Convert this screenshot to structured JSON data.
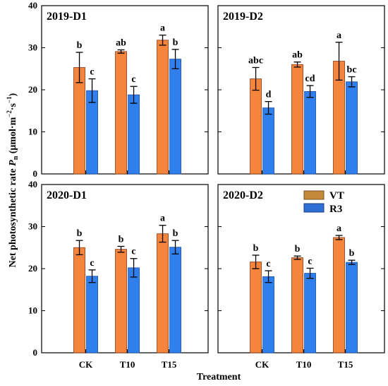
{
  "chart_data": [
    {
      "type": "bar",
      "panel_title": "2019-D1",
      "categories": [
        "CK",
        "T10",
        "T15"
      ],
      "series": [
        {
          "name": "VT",
          "values": [
            25.3,
            29.1,
            31.8
          ],
          "errors": [
            3.6,
            0.4,
            1.2
          ],
          "letters": [
            "b",
            "ab",
            "a"
          ]
        },
        {
          "name": "R3",
          "values": [
            19.8,
            18.8,
            27.3
          ],
          "errors": [
            2.8,
            2.0,
            2.3
          ],
          "letters": [
            "c",
            "c",
            "b"
          ]
        }
      ],
      "ylim": [
        0,
        40
      ],
      "yticks": [
        0,
        10,
        20,
        30,
        40
      ]
    },
    {
      "type": "bar",
      "panel_title": "2019-D2",
      "categories": [
        "CK",
        "T10",
        "T15"
      ],
      "series": [
        {
          "name": "VT",
          "values": [
            22.6,
            26.0,
            26.8
          ],
          "errors": [
            2.7,
            0.6,
            4.5
          ],
          "letters": [
            "abc",
            "ab",
            "a"
          ]
        },
        {
          "name": "R3",
          "values": [
            15.7,
            19.6,
            21.9
          ],
          "errors": [
            1.5,
            1.4,
            1.2
          ],
          "letters": [
            "d",
            "cd",
            "bc"
          ]
        }
      ],
      "ylim": [
        0,
        40
      ],
      "yticks": [
        0,
        10,
        20,
        30,
        40
      ]
    },
    {
      "type": "bar",
      "panel_title": "2020-D1",
      "categories": [
        "CK",
        "T10",
        "T15"
      ],
      "series": [
        {
          "name": "VT",
          "values": [
            25.0,
            24.6,
            28.3
          ],
          "errors": [
            1.7,
            0.7,
            2.0
          ],
          "letters": [
            "b",
            "b",
            "a"
          ]
        },
        {
          "name": "R3",
          "values": [
            18.2,
            20.2,
            25.1
          ],
          "errors": [
            1.5,
            2.2,
            1.6
          ],
          "letters": [
            "c",
            "c",
            "b"
          ]
        }
      ],
      "ylim": [
        0,
        40
      ],
      "yticks": [
        0,
        10,
        20,
        30,
        40
      ]
    },
    {
      "type": "bar",
      "panel_title": "2020-D2",
      "categories": [
        "CK",
        "T10",
        "T15"
      ],
      "series": [
        {
          "name": "VT",
          "values": [
            21.6,
            22.6,
            27.4
          ],
          "errors": [
            1.6,
            0.4,
            0.5
          ],
          "letters": [
            "b",
            "b",
            "a"
          ]
        },
        {
          "name": "R3",
          "values": [
            18.1,
            18.9,
            21.5
          ],
          "errors": [
            1.4,
            1.2,
            0.5
          ],
          "letters": [
            "c",
            "c",
            "b"
          ]
        }
      ],
      "ylim": [
        0,
        40
      ],
      "yticks": [
        0,
        10,
        20,
        30,
        40
      ]
    }
  ],
  "labels": {
    "xlabel": "Treatment",
    "ylabel_prefix": "Net photosynthetic rate ",
    "ylabel_symbol": "P",
    "ylabel_sub": "n",
    "ylabel_unit_open": " (μmol·m",
    "ylabel_exp1": "−2",
    "ylabel_unit_mid": "·s",
    "ylabel_exp2": "−1",
    "ylabel_unit_close": ")"
  },
  "legend": {
    "placement": "top-right of 2020-D2 panel",
    "items": [
      {
        "label": "VT",
        "color": "#c48a3c",
        "edge": "#7a5420"
      },
      {
        "label": "R3",
        "color": "#2f6fd6",
        "edge": "#1b3f86"
      }
    ]
  },
  "colors": {
    "vt_fill": "#f5843c",
    "vt_edge": "#8a3a1a",
    "r3_fill": "#2f80ed",
    "r3_edge": "#1a4fa8"
  }
}
